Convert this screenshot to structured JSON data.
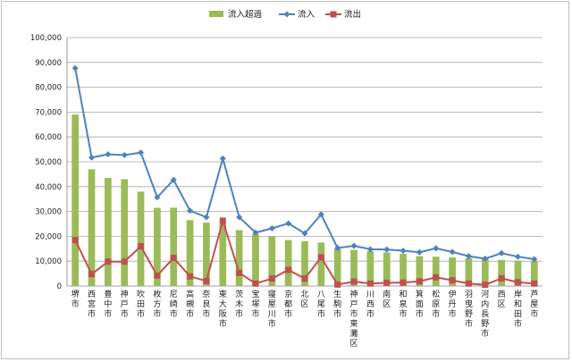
{
  "chart_data": {
    "type": "bar",
    "title": "",
    "xlabel": "",
    "ylabel": "",
    "ylim": [
      0,
      100000
    ],
    "yticks": [
      0,
      10000,
      20000,
      30000,
      40000,
      50000,
      60000,
      70000,
      80000,
      90000,
      100000
    ],
    "ytick_labels": [
      "0",
      "10,000",
      "20,000",
      "30,000",
      "40,000",
      "50,000",
      "60,000",
      "70,000",
      "80,000",
      "90,000",
      "100,000"
    ],
    "grid": true,
    "legend": "top-center",
    "categories": [
      "堺市",
      "西宮市",
      "豊中市",
      "神戸市",
      "吹田市",
      "枚方市",
      "尼崎市",
      "高槻市",
      "奈良市",
      "東大阪市",
      "茨木市",
      "宝塚市",
      "寝屋川市",
      "京都市",
      "北区",
      "八尾市",
      "生駒市",
      "神戸市東灘区",
      "川西市",
      "南区",
      "和泉市",
      "箕面市",
      "松原市",
      "伊丹市",
      "羽曳野市",
      "河内長野市",
      "西区",
      "岸和田市",
      "芦屋市"
    ],
    "series": [
      {
        "name": "流入超過",
        "kind": "bar",
        "color": "#9bbb59",
        "values": [
          69000,
          47000,
          43500,
          43000,
          38000,
          31500,
          31500,
          26500,
          25500,
          25000,
          22500,
          21000,
          20000,
          18500,
          18000,
          17500,
          15000,
          14500,
          14000,
          13500,
          13000,
          12000,
          11800,
          11500,
          11200,
          11000,
          10500,
          10200,
          10000
        ]
      },
      {
        "name": "流入",
        "kind": "line",
        "color": "#4f81bd",
        "marker": "diamond",
        "values": [
          87700,
          51700,
          53000,
          52700,
          53700,
          35700,
          42700,
          30300,
          27700,
          51300,
          27700,
          21500,
          23200,
          25200,
          21200,
          28800,
          15300,
          16200,
          14800,
          14700,
          14200,
          13600,
          15200,
          13700,
          12000,
          11000,
          13200,
          11800,
          10800
        ]
      },
      {
        "name": "流出",
        "kind": "line",
        "color": "#c0504d",
        "marker": "square",
        "values": [
          18500,
          4800,
          9800,
          9800,
          16000,
          4200,
          11300,
          3900,
          2000,
          26300,
          5300,
          1000,
          3000,
          6500,
          3000,
          11500,
          600,
          1800,
          1000,
          1300,
          1400,
          1900,
          3500,
          2300,
          1000,
          500,
          3100,
          1500,
          1000
        ]
      }
    ]
  }
}
